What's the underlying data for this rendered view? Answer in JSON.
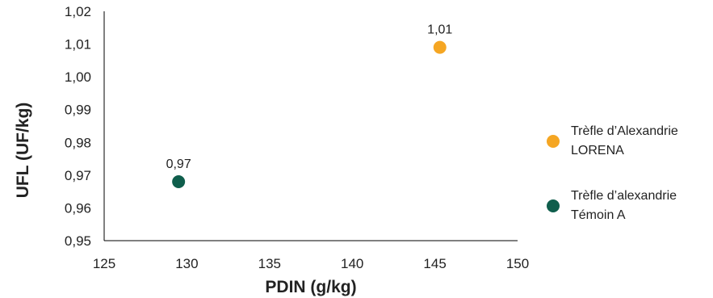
{
  "chart_data": {
    "type": "scatter",
    "xlabel": "PDIN (g/kg)",
    "ylabel": "UFL (UF/kg)",
    "xlim": [
      125,
      150
    ],
    "ylim": [
      0.95,
      1.02
    ],
    "x_ticks": [
      "125",
      "130",
      "135",
      "140",
      "145",
      "150"
    ],
    "y_ticks": [
      "0,95",
      "0,96",
      "0,97",
      "0,98",
      "0,99",
      "1,00",
      "1,01",
      "1,02"
    ],
    "grid": false,
    "legend_position": "right",
    "series": [
      {
        "name": "Trèfle d’Alexandrie LORENA",
        "legend_lines": [
          "Trèfle d’Alexandrie",
          "LORENA"
        ],
        "color": "#F5A623",
        "points": [
          {
            "x": 145.3,
            "y": 1.009,
            "label": "1,01"
          }
        ]
      },
      {
        "name": "Trèfle d’alexandrie Témoin A",
        "legend_lines": [
          "Trèfle d’alexandrie",
          "Témoin A"
        ],
        "color": "#0F5E4C",
        "points": [
          {
            "x": 129.5,
            "y": 0.968,
            "label": "0,97"
          }
        ]
      }
    ]
  }
}
